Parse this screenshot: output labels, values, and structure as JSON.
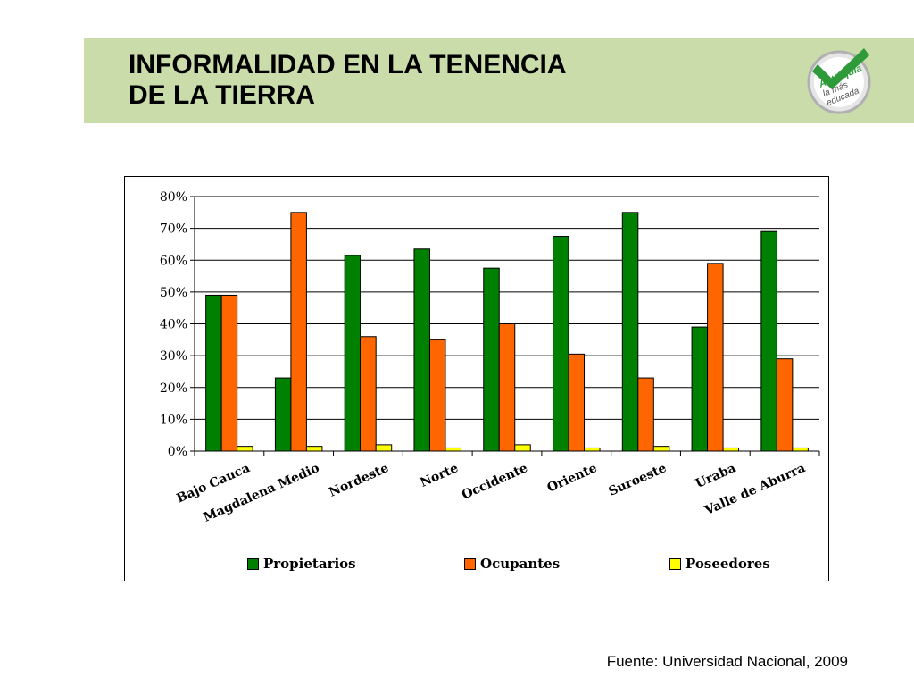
{
  "header": {
    "title_line1": "INFORMALIDAD EN LA TENENCIA",
    "title_line2": "DE LA TIERRA",
    "band_color": "#c9dcaa",
    "logo": {
      "icon": "checkmark-badge-icon",
      "line1": "Antioquia",
      "line2": "la más",
      "line3": "educada",
      "color": "#2f9a3a"
    }
  },
  "chart_data": {
    "type": "bar",
    "title": "",
    "xlabel": "",
    "ylabel": "",
    "categories": [
      "Bajo Cauca",
      "Magdalena Medio",
      "Nordeste",
      "Norte",
      "Occidente",
      "Oriente",
      "Suroeste",
      "Uraba",
      "Valle de Aburra"
    ],
    "series": [
      {
        "name": "Propietarios",
        "color": "#008000",
        "values": [
          49,
          23,
          61.5,
          63.5,
          57.5,
          67.5,
          75,
          39,
          69
        ]
      },
      {
        "name": "Ocupantes",
        "color": "#ff6600",
        "values": [
          49,
          75,
          36,
          35,
          40,
          30.5,
          23,
          59,
          29
        ]
      },
      {
        "name": "Poseedores",
        "color": "#ffff00",
        "values": [
          1.5,
          1.5,
          2,
          1,
          2,
          1,
          1.5,
          1,
          1
        ]
      }
    ],
    "ylim": [
      0,
      80
    ],
    "yticks": [
      "0%",
      "10%",
      "20%",
      "30%",
      "40%",
      "50%",
      "60%",
      "70%",
      "80%"
    ],
    "grid": true,
    "legend_position": "bottom"
  },
  "source": "Fuente: Universidad Nacional, 2009"
}
